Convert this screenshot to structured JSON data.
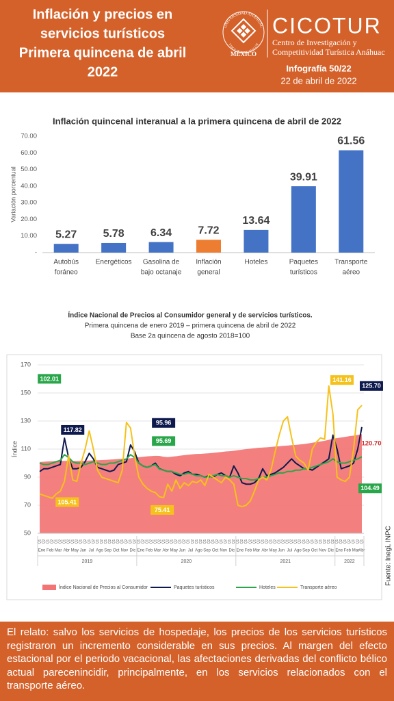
{
  "header": {
    "title": [
      "Inflación y precios en",
      "servicios turísticos",
      "Primera quincena de abril",
      "2022"
    ],
    "university": "UNIVERSIDAD ANÁHUAC",
    "motto": "VINCE IN BONO MALUM",
    "country": "MÉXICO",
    "brand": "CICOTUR",
    "brand_subtitle": [
      "Centro de Investigación y",
      "Competitividad Turística Anáhuac"
    ],
    "issue": "Infografía 50/22",
    "date": "22 de abril de 2022"
  },
  "chart_data": [
    {
      "type": "bar",
      "title": "Inflación quincenal interanual a la primera quincena de abril de 2022",
      "y_label": "Variación porcentual",
      "categories": [
        [
          "Autobús",
          "foráneo"
        ],
        [
          "Energéticos"
        ],
        [
          "Gasolina de",
          "bajo octanaje"
        ],
        [
          "Inflación",
          "general"
        ],
        [
          "Hoteles"
        ],
        [
          "Paquetes",
          "turísticos"
        ],
        [
          "Transporte",
          "aéreo"
        ]
      ],
      "values": [
        5.27,
        5.78,
        6.34,
        7.72,
        13.64,
        39.91,
        61.56
      ],
      "colors": [
        "#4472c4",
        "#4472c4",
        "#4472c4",
        "#ed7d31",
        "#4472c4",
        "#4472c4",
        "#4472c4"
      ],
      "ylim": [
        0,
        70
      ],
      "yticks": [
        {
          "value": 0,
          "label": "-"
        },
        {
          "value": 10,
          "label": "10.00"
        },
        {
          "value": 20,
          "label": "20.00"
        },
        {
          "value": 30,
          "label": "30.00"
        },
        {
          "value": 40,
          "label": "40.00"
        },
        {
          "value": 50,
          "label": "50.00"
        },
        {
          "value": 60,
          "label": "60.00"
        },
        {
          "value": 70,
          "label": "70.00"
        }
      ],
      "grid": false
    },
    {
      "type": "line",
      "title": "Índice Nacional de Precios al Consumidor general y de servicios turísticos.",
      "subtitle": [
        "Primera quincena de enero 2019 – primera quincena de abril de 2022",
        "Base 2a quincena de agosto 2018=100"
      ],
      "y_label": "Índice",
      "source": "Fuente: Inegi, INPC",
      "categories": [
        "Q1",
        "Q2",
        "Q1",
        "Q2",
        "Q1",
        "Q2",
        "Q1",
        "Q2",
        "Q1",
        "Q2",
        "Q1",
        "Q2",
        "Q1",
        "Q2",
        "Q1",
        "Q2",
        "Q1",
        "Q2",
        "Q1",
        "Q2",
        "Q1",
        "Q2",
        "Q1",
        "Q2",
        "Q1",
        "Q2",
        "Q1",
        "Q2",
        "Q1",
        "Q2",
        "Q1",
        "Q2",
        "Q1",
        "Q2",
        "Q1",
        "Q2",
        "Q1",
        "Q2",
        "Q1",
        "Q2",
        "Q1",
        "Q2",
        "Q1",
        "Q2",
        "Q1",
        "Q2",
        "Q1",
        "Q2",
        "Q1",
        "Q2",
        "Q1",
        "Q2",
        "Q1",
        "Q2",
        "Q1",
        "Q2",
        "Q1",
        "Q2",
        "Q1",
        "Q2",
        "Q1",
        "Q2",
        "Q1",
        "Q2",
        "Q1",
        "Q2",
        "Q1",
        "Q2",
        "Q1",
        "Q2",
        "Q1",
        "Q2",
        "Q1",
        "Q2",
        "Q1",
        "Q2",
        "Q1",
        "Q2",
        "Q1"
      ],
      "months": [
        "Ene",
        "Feb",
        "Mar",
        "Abr",
        "May",
        "Jun",
        "Jul",
        "Ago",
        "Sep",
        "Oct",
        "Nov",
        "Dic",
        "Ene",
        "Feb",
        "Mar",
        "Abr",
        "May",
        "Jun",
        "Jul",
        "Ago",
        "Sep",
        "Oct",
        "Nov",
        "Dic",
        "Ene",
        "Feb",
        "Mar",
        "Abr",
        "May",
        "Jun",
        "Jul",
        "Ago",
        "Sep",
        "Oct",
        "Nov",
        "Dic",
        "Ene",
        "Feb",
        "Mar",
        "Abr"
      ],
      "years": [
        "2019",
        "2020",
        "2021",
        "2022"
      ],
      "ylim": [
        50,
        170
      ],
      "yticks": [
        50,
        70,
        90,
        110,
        130,
        150,
        170
      ],
      "grid": true,
      "series": [
        {
          "name": "Índice Nacional de Precios al Consumidor",
          "kind": "area",
          "color": "#f37474",
          "values": [
            100.8,
            101.0,
            101.2,
            101.3,
            101.5,
            101.6,
            101.6,
            101.5,
            101.4,
            101.5,
            101.6,
            101.7,
            101.8,
            102.0,
            102.1,
            102.2,
            102.3,
            102.5,
            102.7,
            102.9,
            103.1,
            103.3,
            103.5,
            103.9,
            104.2,
            104.5,
            104.8,
            105.0,
            105.2,
            105.1,
            104.5,
            104.3,
            104.6,
            104.9,
            105.3,
            105.7,
            106.0,
            106.3,
            106.5,
            106.6,
            106.8,
            107.0,
            107.3,
            107.6,
            107.9,
            108.3,
            108.5,
            108.8,
            109.2,
            109.6,
            110.0,
            110.3,
            110.6,
            110.9,
            111.1,
            111.3,
            111.5,
            111.8,
            112.0,
            112.3,
            112.5,
            112.8,
            113.0,
            113.3,
            113.6,
            114.0,
            114.5,
            115.0,
            115.4,
            115.9,
            116.6,
            117.3,
            117.8,
            118.3,
            118.7,
            119.2,
            119.6,
            120.1,
            120.7
          ],
          "value_labels": [
            null,
            null,
            null,
            null,
            null,
            null,
            null,
            null,
            null,
            null,
            null,
            null,
            null,
            null,
            null,
            null,
            null,
            null,
            null,
            null,
            null,
            null,
            null,
            null,
            null,
            null,
            null,
            null,
            null,
            null,
            null,
            null,
            null,
            null,
            null,
            null,
            null,
            null,
            null,
            null,
            null,
            null,
            null,
            null,
            null,
            null,
            null,
            null,
            null,
            null,
            null,
            null,
            null,
            null,
            null,
            null,
            null,
            null,
            null,
            null,
            null,
            null,
            null,
            null,
            null,
            null,
            null,
            null,
            null,
            null,
            null,
            null,
            null,
            null,
            null,
            null,
            null,
            null,
            "120.70"
          ]
        },
        {
          "name": "Paquetes turísticos",
          "kind": "line",
          "color": "#0e1a4d",
          "values": [
            94,
            96,
            96,
            97,
            98,
            99,
            117.82,
            104,
            96,
            96,
            97,
            101,
            107,
            103,
            97,
            96,
            95,
            94,
            95,
            99,
            100,
            101,
            113,
            108,
            100,
            98,
            97,
            98,
            100,
            95.96,
            95,
            94,
            94,
            92,
            91,
            93,
            94,
            92,
            92,
            91,
            90,
            91,
            90,
            92,
            93,
            91,
            90,
            98,
            93,
            86,
            85,
            85,
            86,
            89,
            96,
            91,
            92,
            93,
            95,
            97,
            100,
            103,
            100,
            98,
            96,
            96,
            95,
            97,
            99,
            101,
            103,
            120,
            110,
            96,
            97,
            98,
            100,
            110,
            125.7
          ],
          "value_labels": [
            null,
            null,
            null,
            null,
            null,
            null,
            "117.82",
            null,
            null,
            null,
            null,
            null,
            null,
            null,
            null,
            null,
            null,
            null,
            null,
            null,
            null,
            null,
            null,
            null,
            null,
            null,
            null,
            null,
            null,
            "95.96",
            null,
            null,
            null,
            null,
            null,
            null,
            null,
            null,
            null,
            null,
            null,
            null,
            null,
            null,
            null,
            null,
            null,
            null,
            null,
            null,
            null,
            null,
            null,
            null,
            null,
            null,
            null,
            null,
            null,
            null,
            null,
            null,
            null,
            null,
            null,
            null,
            null,
            null,
            null,
            null,
            null,
            null,
            null,
            null,
            null,
            null,
            null,
            null,
            "125.70"
          ]
        },
        {
          "name": "Hoteles",
          "kind": "line",
          "color": "#2aa64a",
          "values": [
            100,
            99,
            99,
            100,
            101,
            102.01,
            106,
            104,
            101,
            100,
            100,
            99,
            100,
            101,
            100,
            99,
            99,
            100,
            100,
            101,
            102,
            103,
            106,
            104,
            100,
            98,
            97,
            98,
            99,
            95.69,
            95,
            94,
            94,
            93,
            92,
            92,
            93,
            92,
            91,
            91,
            90,
            90,
            91,
            92,
            91,
            91,
            90,
            91,
            90,
            89,
            89,
            88,
            88,
            89,
            90,
            90,
            91,
            92,
            93,
            93,
            94,
            94,
            95,
            95,
            96,
            96,
            97,
            98,
            99,
            100,
            101,
            103,
            101,
            100,
            100,
            101,
            102,
            103,
            104.49
          ],
          "value_labels": [
            null,
            null,
            null,
            null,
            null,
            "102.01",
            null,
            null,
            null,
            null,
            null,
            null,
            null,
            null,
            null,
            null,
            null,
            null,
            null,
            null,
            null,
            null,
            null,
            null,
            null,
            null,
            null,
            null,
            null,
            "95.69",
            null,
            null,
            null,
            null,
            null,
            null,
            null,
            null,
            null,
            null,
            null,
            null,
            null,
            null,
            null,
            null,
            null,
            null,
            null,
            null,
            null,
            null,
            null,
            null,
            null,
            null,
            null,
            null,
            null,
            null,
            null,
            null,
            null,
            null,
            null,
            null,
            null,
            null,
            null,
            null,
            null,
            null,
            null,
            null,
            null,
            null,
            null,
            null,
            "104.49"
          ]
        },
        {
          "name": "Transporte aéreo",
          "kind": "line",
          "color": "#f5c21b",
          "values": [
            78,
            77,
            76,
            75,
            78,
            80,
            87,
            105.41,
            88,
            87,
            100,
            110,
            123,
            110,
            95,
            90,
            89,
            88,
            87,
            86,
            95,
            129,
            125,
            105,
            90,
            85,
            82,
            80,
            79,
            76,
            75.41,
            85,
            80,
            88,
            82,
            86,
            84,
            87,
            86,
            88,
            84,
            92,
            90,
            88,
            86,
            90,
            88,
            85,
            70,
            69,
            70,
            73,
            80,
            88,
            90,
            88,
            95,
            108,
            120,
            130,
            133,
            118,
            105,
            102,
            100,
            95,
            110,
            115,
            118,
            117,
            155,
            135,
            90,
            88,
            87,
            90,
            110,
            138,
            141.16
          ],
          "value_labels": [
            null,
            null,
            null,
            null,
            null,
            null,
            null,
            "105.41",
            null,
            null,
            null,
            null,
            null,
            null,
            null,
            null,
            null,
            null,
            null,
            null,
            null,
            null,
            null,
            null,
            null,
            null,
            null,
            null,
            null,
            null,
            "75.41",
            null,
            null,
            null,
            null,
            null,
            null,
            null,
            null,
            null,
            null,
            null,
            null,
            null,
            null,
            null,
            null,
            null,
            null,
            null,
            null,
            null,
            null,
            null,
            null,
            null,
            null,
            null,
            null,
            null,
            null,
            null,
            null,
            null,
            null,
            null,
            null,
            null,
            null,
            null,
            null,
            null,
            null,
            null,
            null,
            null,
            null,
            null,
            "141.16"
          ]
        }
      ]
    }
  ],
  "narrative": "El relato: salvo los servicios de hospedaje, los precios de los servicios turísticos registraron un incremento considerable en sus precios. Al margen del efecto estacional por el periodo vacacional, las afectaciones derivadas del conflicto bélico actual parecenincidir, principalmente, en los servicios relacionados con el transporte aéreo."
}
